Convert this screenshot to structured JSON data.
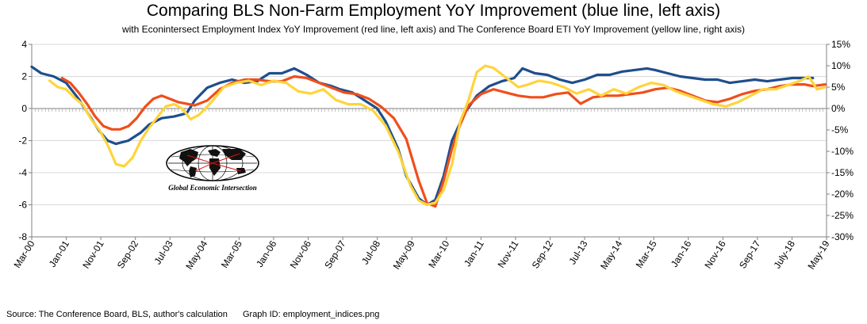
{
  "title": "Comparing BLS Non-Farm Employment YoY Improvement (blue line, left axis)",
  "subtitle": "with Econintersect Employment Index YoY Improvement (red line, left axis) and The Conference Board ETI YoY Improvement (yellow line, right axis)",
  "footer": {
    "source": "Source: The Conference Board, BLS, author's calculation",
    "graph_id": "Graph ID: employment_indices.png"
  },
  "logo": {
    "text": "Global Economic Intersection",
    "icon": "globe-icon"
  },
  "colors": {
    "blue": "#1F4E8C",
    "red": "#F04E1C",
    "yellow": "#FFD43B",
    "grid": "#D9D9D9",
    "axis": "#808080"
  },
  "chart_data": {
    "type": "line",
    "title": "Comparing BLS Non-Farm Employment YoY Improvement (blue line, left axis)",
    "subtitle": "with Econintersect Employment Index YoY Improvement (red line, left axis) and The Conference Board ETI YoY Improvement (yellow line, right axis)",
    "x_ticks": [
      "Mar-00",
      "Jan-01",
      "Nov-01",
      "Sep-02",
      "Jul-03",
      "May-04",
      "Mar-05",
      "Jan-06",
      "Nov-06",
      "Sep-07",
      "Jul-08",
      "May-09",
      "Mar-10",
      "Jan-11",
      "Nov-11",
      "Sep-12",
      "Jul-13",
      "May-14",
      "Mar-15",
      "Jan-16",
      "Nov-16",
      "Sep-17",
      "July-18",
      "May-19"
    ],
    "x_range": [
      2000.17,
      2019.33
    ],
    "left_axis": {
      "ylim": [
        -8,
        4
      ],
      "ticks": [
        "-8",
        "-6",
        "-4",
        "-2",
        "0",
        "2",
        "4"
      ]
    },
    "right_axis": {
      "ylim": [
        -30,
        15
      ],
      "ticks": [
        "-30%",
        "-25%",
        "-20%",
        "-15%",
        "-10%",
        "-5%",
        "0%",
        "5%",
        "10%",
        "15%"
      ]
    },
    "gridlines": "horizontal",
    "series": [
      {
        "axis": "left",
        "color": "#1F4E8C",
        "points": [
          [
            2000.17,
            2.6
          ],
          [
            2000.4,
            2.2
          ],
          [
            2000.7,
            2.0
          ],
          [
            2001.0,
            1.6
          ],
          [
            2001.3,
            0.6
          ],
          [
            2001.6,
            -0.6
          ],
          [
            2001.8,
            -1.4
          ],
          [
            2002.0,
            -2.0
          ],
          [
            2002.2,
            -2.2
          ],
          [
            2002.5,
            -2.0
          ],
          [
            2002.8,
            -1.5
          ],
          [
            2003.0,
            -1.0
          ],
          [
            2003.3,
            -0.6
          ],
          [
            2003.6,
            -0.5
          ],
          [
            2003.9,
            -0.3
          ],
          [
            2004.1,
            0.5
          ],
          [
            2004.4,
            1.3
          ],
          [
            2004.7,
            1.6
          ],
          [
            2005.0,
            1.8
          ],
          [
            2005.3,
            1.6
          ],
          [
            2005.6,
            1.7
          ],
          [
            2005.9,
            2.2
          ],
          [
            2006.2,
            2.2
          ],
          [
            2006.5,
            2.5
          ],
          [
            2006.8,
            2.1
          ],
          [
            2007.1,
            1.6
          ],
          [
            2007.4,
            1.4
          ],
          [
            2007.6,
            1.2
          ],
          [
            2007.9,
            1.0
          ],
          [
            2008.2,
            0.5
          ],
          [
            2008.5,
            0.0
          ],
          [
            2008.7,
            -0.8
          ],
          [
            2009.0,
            -2.5
          ],
          [
            2009.2,
            -4.2
          ],
          [
            2009.5,
            -5.6
          ],
          [
            2009.7,
            -6.0
          ],
          [
            2009.9,
            -5.7
          ],
          [
            2010.1,
            -4.2
          ],
          [
            2010.3,
            -2.0
          ],
          [
            2010.6,
            -0.3
          ],
          [
            2010.9,
            0.8
          ],
          [
            2011.2,
            1.4
          ],
          [
            2011.5,
            1.7
          ],
          [
            2011.8,
            1.9
          ],
          [
            2012.0,
            2.5
          ],
          [
            2012.3,
            2.2
          ],
          [
            2012.6,
            2.1
          ],
          [
            2012.9,
            1.8
          ],
          [
            2013.2,
            1.6
          ],
          [
            2013.5,
            1.8
          ],
          [
            2013.8,
            2.1
          ],
          [
            2014.1,
            2.1
          ],
          [
            2014.4,
            2.3
          ],
          [
            2014.7,
            2.4
          ],
          [
            2015.0,
            2.5
          ],
          [
            2015.2,
            2.4
          ],
          [
            2015.5,
            2.2
          ],
          [
            2015.8,
            2.0
          ],
          [
            2016.1,
            1.9
          ],
          [
            2016.4,
            1.8
          ],
          [
            2016.7,
            1.8
          ],
          [
            2017.0,
            1.6
          ],
          [
            2017.3,
            1.7
          ],
          [
            2017.6,
            1.8
          ],
          [
            2017.9,
            1.7
          ],
          [
            2018.2,
            1.8
          ],
          [
            2018.5,
            1.9
          ],
          [
            2018.8,
            1.9
          ],
          [
            2019.0,
            1.9
          ]
        ]
      },
      {
        "axis": "left",
        "color": "#F04E1C",
        "points": [
          [
            2000.9,
            1.9
          ],
          [
            2001.1,
            1.6
          ],
          [
            2001.3,
            1.0
          ],
          [
            2001.5,
            0.3
          ],
          [
            2001.7,
            -0.5
          ],
          [
            2001.9,
            -1.1
          ],
          [
            2002.1,
            -1.3
          ],
          [
            2002.3,
            -1.3
          ],
          [
            2002.5,
            -1.1
          ],
          [
            2002.7,
            -0.6
          ],
          [
            2002.9,
            0.1
          ],
          [
            2003.1,
            0.6
          ],
          [
            2003.3,
            0.8
          ],
          [
            2003.5,
            0.6
          ],
          [
            2003.7,
            0.4
          ],
          [
            2003.9,
            0.3
          ],
          [
            2004.1,
            0.2
          ],
          [
            2004.4,
            0.5
          ],
          [
            2004.7,
            1.2
          ],
          [
            2005.0,
            1.6
          ],
          [
            2005.3,
            1.8
          ],
          [
            2005.6,
            1.8
          ],
          [
            2005.9,
            1.7
          ],
          [
            2006.2,
            1.7
          ],
          [
            2006.5,
            2.0
          ],
          [
            2006.8,
            1.9
          ],
          [
            2007.1,
            1.6
          ],
          [
            2007.4,
            1.3
          ],
          [
            2007.7,
            1.0
          ],
          [
            2008.0,
            0.9
          ],
          [
            2008.3,
            0.6
          ],
          [
            2008.6,
            0.1
          ],
          [
            2008.9,
            -0.6
          ],
          [
            2009.2,
            -1.9
          ],
          [
            2009.5,
            -4.5
          ],
          [
            2009.7,
            -5.9
          ],
          [
            2009.9,
            -6.1
          ],
          [
            2010.1,
            -4.5
          ],
          [
            2010.3,
            -2.5
          ],
          [
            2010.5,
            -1.0
          ],
          [
            2010.7,
            0.2
          ],
          [
            2011.0,
            0.9
          ],
          [
            2011.3,
            1.2
          ],
          [
            2011.6,
            1.0
          ],
          [
            2011.9,
            0.8
          ],
          [
            2012.2,
            0.7
          ],
          [
            2012.5,
            0.7
          ],
          [
            2012.8,
            0.9
          ],
          [
            2013.1,
            1.0
          ],
          [
            2013.4,
            0.3
          ],
          [
            2013.7,
            0.7
          ],
          [
            2014.0,
            0.8
          ],
          [
            2014.3,
            0.8
          ],
          [
            2014.6,
            0.9
          ],
          [
            2014.9,
            1.0
          ],
          [
            2015.2,
            1.2
          ],
          [
            2015.5,
            1.3
          ],
          [
            2015.8,
            1.1
          ],
          [
            2016.1,
            0.8
          ],
          [
            2016.4,
            0.5
          ],
          [
            2016.7,
            0.4
          ],
          [
            2017.0,
            0.6
          ],
          [
            2017.3,
            0.9
          ],
          [
            2017.6,
            1.1
          ],
          [
            2017.9,
            1.2
          ],
          [
            2018.2,
            1.4
          ],
          [
            2018.5,
            1.5
          ],
          [
            2018.8,
            1.5
          ],
          [
            2019.0,
            1.4
          ],
          [
            2019.3,
            1.5
          ]
        ]
      },
      {
        "axis": "right",
        "color": "#FFD43B",
        "points": [
          [
            2000.6,
            6.5
          ],
          [
            2000.8,
            5.0
          ],
          [
            2001.0,
            4.5
          ],
          [
            2001.2,
            2.5
          ],
          [
            2001.4,
            1.0
          ],
          [
            2001.6,
            -2.5
          ],
          [
            2001.8,
            -5.0
          ],
          [
            2002.0,
            -8.5
          ],
          [
            2002.2,
            -13.0
          ],
          [
            2002.4,
            -13.5
          ],
          [
            2002.6,
            -11.5
          ],
          [
            2002.8,
            -7.5
          ],
          [
            2003.0,
            -4.5
          ],
          [
            2003.2,
            -2.0
          ],
          [
            2003.4,
            0.5
          ],
          [
            2003.6,
            1.0
          ],
          [
            2003.8,
            0.0
          ],
          [
            2004.0,
            -2.5
          ],
          [
            2004.2,
            -1.5
          ],
          [
            2004.5,
            1.5
          ],
          [
            2004.8,
            5.0
          ],
          [
            2005.1,
            6.0
          ],
          [
            2005.4,
            6.5
          ],
          [
            2005.7,
            5.5
          ],
          [
            2006.0,
            6.5
          ],
          [
            2006.3,
            6.0
          ],
          [
            2006.6,
            4.0
          ],
          [
            2006.9,
            3.5
          ],
          [
            2007.2,
            4.5
          ],
          [
            2007.5,
            2.0
          ],
          [
            2007.8,
            1.0
          ],
          [
            2008.1,
            1.0
          ],
          [
            2008.4,
            -0.5
          ],
          [
            2008.7,
            -4.0
          ],
          [
            2009.0,
            -10.0
          ],
          [
            2009.3,
            -18.0
          ],
          [
            2009.5,
            -21.5
          ],
          [
            2009.7,
            -22.5
          ],
          [
            2009.9,
            -22.0
          ],
          [
            2010.1,
            -19.0
          ],
          [
            2010.3,
            -13.0
          ],
          [
            2010.5,
            -3.0
          ],
          [
            2010.7,
            2.0
          ],
          [
            2010.9,
            8.5
          ],
          [
            2011.1,
            10.0
          ],
          [
            2011.3,
            9.5
          ],
          [
            2011.5,
            8.0
          ],
          [
            2011.7,
            6.5
          ],
          [
            2011.9,
            5.0
          ],
          [
            2012.1,
            5.5
          ],
          [
            2012.4,
            6.5
          ],
          [
            2012.7,
            6.0
          ],
          [
            2013.0,
            5.0
          ],
          [
            2013.3,
            3.5
          ],
          [
            2013.6,
            4.5
          ],
          [
            2013.9,
            3.0
          ],
          [
            2014.2,
            4.5
          ],
          [
            2014.5,
            3.5
          ],
          [
            2014.8,
            5.0
          ],
          [
            2015.1,
            6.0
          ],
          [
            2015.4,
            5.5
          ],
          [
            2015.7,
            4.0
          ],
          [
            2016.0,
            3.0
          ],
          [
            2016.3,
            2.0
          ],
          [
            2016.6,
            1.0
          ],
          [
            2016.9,
            0.5
          ],
          [
            2017.2,
            1.5
          ],
          [
            2017.5,
            3.0
          ],
          [
            2017.8,
            4.5
          ],
          [
            2018.1,
            4.5
          ],
          [
            2018.4,
            5.5
          ],
          [
            2018.7,
            6.5
          ],
          [
            2018.9,
            7.5
          ],
          [
            2019.1,
            4.5
          ],
          [
            2019.3,
            5.0
          ]
        ]
      }
    ]
  }
}
